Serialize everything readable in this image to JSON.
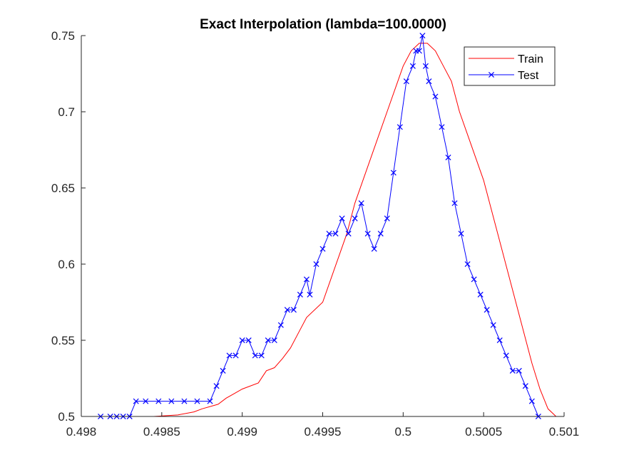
{
  "chart_data": {
    "type": "line",
    "title": "Exact Interpolation (lambda=100.0000)",
    "xlabel": "",
    "ylabel": "",
    "xlim": [
      0.498,
      0.501
    ],
    "ylim": [
      0.5,
      0.75
    ],
    "xticks": [
      0.498,
      0.4985,
      0.499,
      0.4995,
      0.5,
      0.5005,
      0.501
    ],
    "xtick_labels": [
      "0.498",
      "0.4985",
      "0.499",
      "0.4995",
      "0.5",
      "0.5005",
      "0.501"
    ],
    "yticks": [
      0.5,
      0.55,
      0.6,
      0.65,
      0.7,
      0.75
    ],
    "ytick_labels": [
      "0.5",
      "0.55",
      "0.6",
      "0.65",
      "0.7",
      "0.75"
    ],
    "grid": false,
    "legend_position": "top-right",
    "series": [
      {
        "name": "Train",
        "color": "#ff0000",
        "marker": "none",
        "points": [
          [
            0.49845,
            0.5
          ],
          [
            0.4986,
            0.501
          ],
          [
            0.4987,
            0.503
          ],
          [
            0.49875,
            0.505
          ],
          [
            0.49885,
            0.508
          ],
          [
            0.4989,
            0.512
          ],
          [
            0.49895,
            0.515
          ],
          [
            0.499,
            0.518
          ],
          [
            0.4991,
            0.522
          ],
          [
            0.49915,
            0.53
          ],
          [
            0.4992,
            0.532
          ],
          [
            0.49925,
            0.538
          ],
          [
            0.4993,
            0.545
          ],
          [
            0.49935,
            0.555
          ],
          [
            0.4994,
            0.565
          ],
          [
            0.4995,
            0.575
          ],
          [
            0.49955,
            0.59
          ],
          [
            0.4996,
            0.605
          ],
          [
            0.49965,
            0.62
          ],
          [
            0.4997,
            0.64
          ],
          [
            0.49975,
            0.655
          ],
          [
            0.4998,
            0.67
          ],
          [
            0.49985,
            0.685
          ],
          [
            0.4999,
            0.7
          ],
          [
            0.49995,
            0.715
          ],
          [
            0.5,
            0.73
          ],
          [
            0.50005,
            0.74
          ],
          [
            0.5001,
            0.745
          ],
          [
            0.50015,
            0.745
          ],
          [
            0.5002,
            0.74
          ],
          [
            0.50025,
            0.73
          ],
          [
            0.5003,
            0.72
          ],
          [
            0.50035,
            0.7
          ],
          [
            0.5004,
            0.685
          ],
          [
            0.5005,
            0.655
          ],
          [
            0.50055,
            0.635
          ],
          [
            0.5006,
            0.615
          ],
          [
            0.50065,
            0.595
          ],
          [
            0.5007,
            0.575
          ],
          [
            0.50075,
            0.555
          ],
          [
            0.5008,
            0.535
          ],
          [
            0.50085,
            0.518
          ],
          [
            0.5009,
            0.505
          ],
          [
            0.50095,
            0.5
          ]
        ]
      },
      {
        "name": "Test",
        "color": "#0000ff",
        "marker": "x",
        "points": [
          [
            0.49812,
            0.5
          ],
          [
            0.49818,
            0.5
          ],
          [
            0.49822,
            0.5
          ],
          [
            0.49826,
            0.5
          ],
          [
            0.4983,
            0.5
          ],
          [
            0.49834,
            0.51
          ],
          [
            0.4984,
            0.51
          ],
          [
            0.49848,
            0.51
          ],
          [
            0.49856,
            0.51
          ],
          [
            0.49864,
            0.51
          ],
          [
            0.49872,
            0.51
          ],
          [
            0.4988,
            0.51
          ],
          [
            0.49884,
            0.52
          ],
          [
            0.49888,
            0.53
          ],
          [
            0.49892,
            0.54
          ],
          [
            0.49896,
            0.54
          ],
          [
            0.499,
            0.55
          ],
          [
            0.49904,
            0.55
          ],
          [
            0.49908,
            0.54
          ],
          [
            0.49912,
            0.54
          ],
          [
            0.49916,
            0.55
          ],
          [
            0.4992,
            0.55
          ],
          [
            0.49924,
            0.56
          ],
          [
            0.49928,
            0.57
          ],
          [
            0.49932,
            0.57
          ],
          [
            0.49936,
            0.58
          ],
          [
            0.4994,
            0.59
          ],
          [
            0.49942,
            0.58
          ],
          [
            0.49946,
            0.6
          ],
          [
            0.4995,
            0.61
          ],
          [
            0.49954,
            0.62
          ],
          [
            0.49958,
            0.62
          ],
          [
            0.49962,
            0.63
          ],
          [
            0.49966,
            0.62
          ],
          [
            0.4997,
            0.63
          ],
          [
            0.49974,
            0.64
          ],
          [
            0.49978,
            0.62
          ],
          [
            0.49982,
            0.61
          ],
          [
            0.49986,
            0.62
          ],
          [
            0.4999,
            0.63
          ],
          [
            0.49994,
            0.66
          ],
          [
            0.49998,
            0.69
          ],
          [
            0.50002,
            0.72
          ],
          [
            0.50006,
            0.73
          ],
          [
            0.50008,
            0.74
          ],
          [
            0.5001,
            0.74
          ],
          [
            0.50012,
            0.75
          ],
          [
            0.50014,
            0.73
          ],
          [
            0.50016,
            0.72
          ],
          [
            0.5002,
            0.71
          ],
          [
            0.50024,
            0.69
          ],
          [
            0.50028,
            0.67
          ],
          [
            0.50032,
            0.64
          ],
          [
            0.50036,
            0.62
          ],
          [
            0.5004,
            0.6
          ],
          [
            0.50044,
            0.59
          ],
          [
            0.50048,
            0.58
          ],
          [
            0.50052,
            0.57
          ],
          [
            0.50056,
            0.56
          ],
          [
            0.5006,
            0.55
          ],
          [
            0.50064,
            0.54
          ],
          [
            0.50068,
            0.53
          ],
          [
            0.50072,
            0.53
          ],
          [
            0.50076,
            0.52
          ],
          [
            0.5008,
            0.51
          ],
          [
            0.50084,
            0.5
          ]
        ]
      }
    ]
  }
}
